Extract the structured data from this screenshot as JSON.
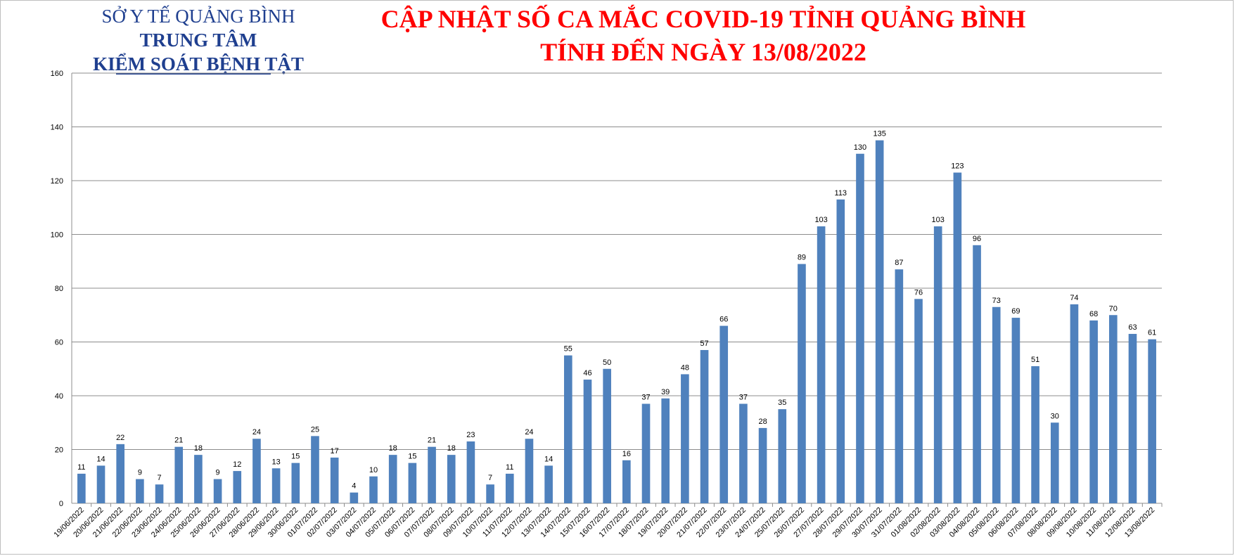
{
  "header": {
    "org_line1": "SỞ Y TẾ QUẢNG BÌNH",
    "org_line2": "TRUNG TÂM",
    "org_line3": "KIỂM SOÁT BỆNH TẬT",
    "title_line1": "CẬP NHẬT SỐ CA MẮC COVID-19 TỈNH QUẢNG BÌNH",
    "title_line2": "TÍNH ĐẾN NGÀY 13/08/2022"
  },
  "colors": {
    "bar": "#4f81bd",
    "title": "#ff0000",
    "org": "#1f3f8f",
    "grid": "#8c8c8c"
  },
  "chart_data": {
    "type": "bar",
    "title": "",
    "xlabel": "",
    "ylabel": "",
    "ylim": [
      0,
      160
    ],
    "yticks": [
      0,
      20,
      40,
      60,
      80,
      100,
      120,
      140,
      160
    ],
    "grid": true,
    "legend": "none",
    "categories": [
      "19/06/2022",
      "20/06/2022",
      "21/06/2022",
      "22/06/2022",
      "23/06/2022",
      "24/06/2022",
      "25/06/2022",
      "26/06/2022",
      "27/06/2022",
      "28/06/2022",
      "29/06/2022",
      "30/06/2022",
      "01/07/2022",
      "02/07/2022",
      "03/07/2022",
      "04/07/2022",
      "05/07/2022",
      "06/07/2022",
      "07/07/2022",
      "08/07/2022",
      "09/07/2022",
      "10/07/2022",
      "11/07/2022",
      "12/07/2022",
      "13/07/2022",
      "14/07/2022",
      "15/07/2022",
      "16/07/2022",
      "17/07/2022",
      "18/07/2022",
      "19/07/2022",
      "20/07/2022",
      "21/07/2022",
      "22/07/2022",
      "23/07/2022",
      "24/07/2022",
      "25/07/2022",
      "26/07/2022",
      "27/07/2022",
      "28/07/2022",
      "29/07/2022",
      "30/07/2022",
      "31/07/2022",
      "01/08/2022",
      "02/08/2022",
      "03/08/2022",
      "04/08/2022",
      "05/08/2022",
      "06/08/2022",
      "07/08/2022",
      "08/08/2022",
      "09/08/2022",
      "10/08/2022",
      "11/08/2022",
      "12/08/2022",
      "13/08/2022"
    ],
    "values": [
      11,
      14,
      22,
      9,
      7,
      21,
      18,
      9,
      12,
      24,
      13,
      15,
      25,
      17,
      4,
      10,
      18,
      15,
      21,
      18,
      23,
      7,
      11,
      24,
      14,
      55,
      46,
      50,
      16,
      37,
      39,
      48,
      57,
      66,
      37,
      28,
      35,
      89,
      103,
      113,
      130,
      135,
      87,
      76,
      103,
      123,
      96,
      73,
      69,
      51,
      30,
      74,
      68,
      70,
      63,
      61
    ]
  }
}
